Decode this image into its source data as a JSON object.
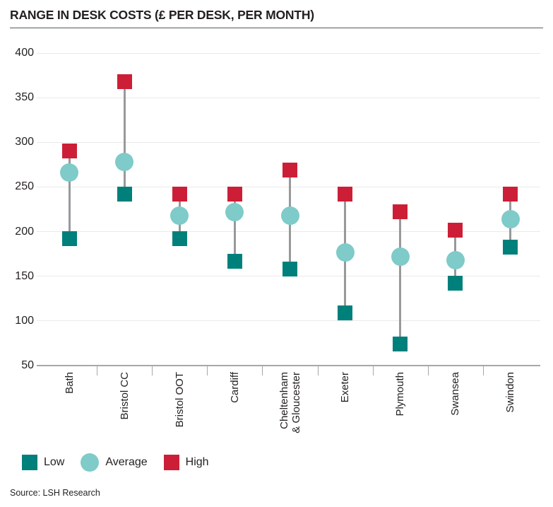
{
  "title": "RANGE IN DESK COSTS (£ PER DESK, PER MONTH)",
  "source": "Source: LSH Research",
  "legend": {
    "items": [
      {
        "label": "Low",
        "shape": "square",
        "color": "#00807b"
      },
      {
        "label": "Average",
        "shape": "circle",
        "color": "#7ecbc9"
      },
      {
        "label": "High",
        "shape": "square",
        "color": "#cc1f37"
      }
    ],
    "position": "bottom"
  },
  "chart_data": {
    "type": "scatter",
    "subtype": "range-dumbbell",
    "title": "RANGE IN DESK COSTS (£ PER DESK, PER MONTH)",
    "categories": [
      "Bath",
      "Bristol CC",
      "Bristol OOT",
      "Cardiff",
      "Cheltenham\n& Gloucester",
      "Exeter",
      "Plymouth",
      "Swansea",
      "Swindon"
    ],
    "series": [
      {
        "name": "Low",
        "marker": "square",
        "color": "#00807b",
        "values": [
          192,
          242,
          192,
          167,
          158,
          109,
          74,
          142,
          183
        ]
      },
      {
        "name": "Average",
        "marker": "circle",
        "color": "#7ecbc9",
        "values": [
          266,
          278,
          218,
          222,
          218,
          177,
          172,
          168,
          214
        ]
      },
      {
        "name": "High",
        "marker": "square",
        "color": "#cc1f37",
        "values": [
          290,
          368,
          242,
          242,
          269,
          242,
          222,
          202,
          242
        ]
      }
    ],
    "ylim": [
      50,
      400
    ],
    "yticks": [
      50,
      100,
      150,
      200,
      250,
      300,
      350,
      400
    ],
    "xlabel": "",
    "ylabel": "",
    "grid": "horizontal",
    "legend_position": "bottom",
    "connector_color": "#97999b"
  },
  "colors": {
    "low": "#00807b",
    "average": "#7ecbc9",
    "high": "#cc1f37",
    "grid": "#e9e9e9",
    "axis": "#a5a7a9",
    "connector": "#97999b",
    "text": "#231f20",
    "rule": "#58595b"
  }
}
